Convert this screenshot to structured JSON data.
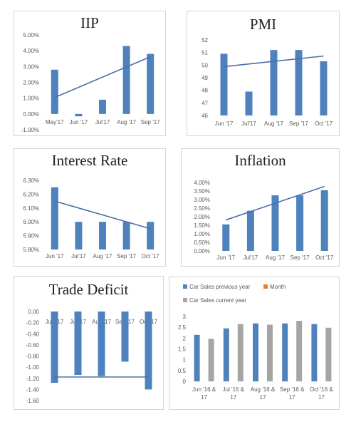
{
  "colors": {
    "bar": "#4f81bd",
    "line": "#4a6fa5",
    "gray": "#a5a5a5",
    "orange": "#ed7d31",
    "grid_text": "#595959"
  },
  "chart_data": [
    {
      "type": "bar",
      "title": "IIP",
      "categories": [
        "May'17",
        "Jun '17",
        "Jul'17",
        "Aug '17",
        "Sep '17"
      ],
      "values": [
        2.8,
        -0.15,
        0.9,
        4.3,
        3.8
      ],
      "trendline": "linear",
      "ylim": [
        -1,
        5
      ],
      "yticks": [
        "5.00%",
        "4.00%",
        "3.00%",
        "2.00%",
        "1.00%",
        "0.00%",
        "-1.00%"
      ],
      "grid": false
    },
    {
      "type": "bar",
      "title": "PMI",
      "categories": [
        "Jun '17",
        "Jul'17",
        "Aug '17",
        "Sep '17",
        "Oct '17"
      ],
      "values": [
        50.9,
        47.9,
        51.2,
        51.2,
        50.3
      ],
      "trendline": "linear",
      "ylim": [
        46,
        52
      ],
      "yticks": [
        "52",
        "51",
        "50",
        "49",
        "48",
        "47",
        "46"
      ],
      "grid": false
    },
    {
      "type": "bar",
      "title": "Interest Rate",
      "categories": [
        "Jun '17",
        "Jul'17",
        "Aug '17",
        "Sep '17",
        "Oct '17"
      ],
      "values": [
        6.25,
        6.0,
        6.0,
        6.0,
        6.0
      ],
      "trendline": "linear",
      "ylim": [
        5.8,
        6.3
      ],
      "yticks": [
        "6.30%",
        "6.20%",
        "6.10%",
        "6.00%",
        "5.90%",
        "5.80%"
      ],
      "grid": false
    },
    {
      "type": "bar",
      "title": "Inflation",
      "categories": [
        "Jun '17",
        "Jul'17",
        "Aug '17",
        "Sep '17",
        "Oct '17"
      ],
      "values": [
        1.55,
        2.35,
        3.25,
        3.25,
        3.55
      ],
      "trendline": "linear",
      "ylim": [
        0,
        4
      ],
      "yticks": [
        "4.00%",
        "3.50%",
        "3.00%",
        "2.50%",
        "2.00%",
        "1.50%",
        "1.00%",
        "0.50%",
        "0.00%"
      ],
      "grid": false
    },
    {
      "type": "bar",
      "title": "Trade Deficit",
      "categories": [
        "Jun '17",
        "Jul '17",
        "Aug '17",
        "Sep '17",
        "Oct '17"
      ],
      "values": [
        -1.28,
        -1.14,
        -1.16,
        -0.9,
        -1.4
      ],
      "trendline": "linear",
      "ylim": [
        -1.6,
        0
      ],
      "yticks": [
        "0.00",
        "-0.20",
        "-0.40",
        "-0.60",
        "-0.80",
        "-1.00",
        "-1.20",
        "-1.40",
        "-1.60"
      ],
      "grid": false
    },
    {
      "type": "bar",
      "title": "",
      "categories": [
        "Jun '16 & 17",
        "Jul '16 & 17",
        "Aug '16 & 17",
        "Sep '16 & 17",
        "Oct '16 & 17"
      ],
      "series": [
        {
          "name": "Car Sales previous year",
          "values": [
            2.15,
            2.45,
            2.68,
            2.68,
            2.65
          ]
        },
        {
          "name": "Month",
          "values": [
            0,
            0,
            0,
            0,
            0
          ]
        },
        {
          "name": "Car Sales current year",
          "values": [
            1.97,
            2.65,
            2.62,
            2.8,
            2.48
          ]
        }
      ],
      "ylim": [
        0,
        3
      ],
      "yticks": [
        "3",
        "2.5",
        "2",
        "1.5",
        "1",
        "0.5",
        "0"
      ],
      "legend": "top",
      "grid": false
    }
  ]
}
